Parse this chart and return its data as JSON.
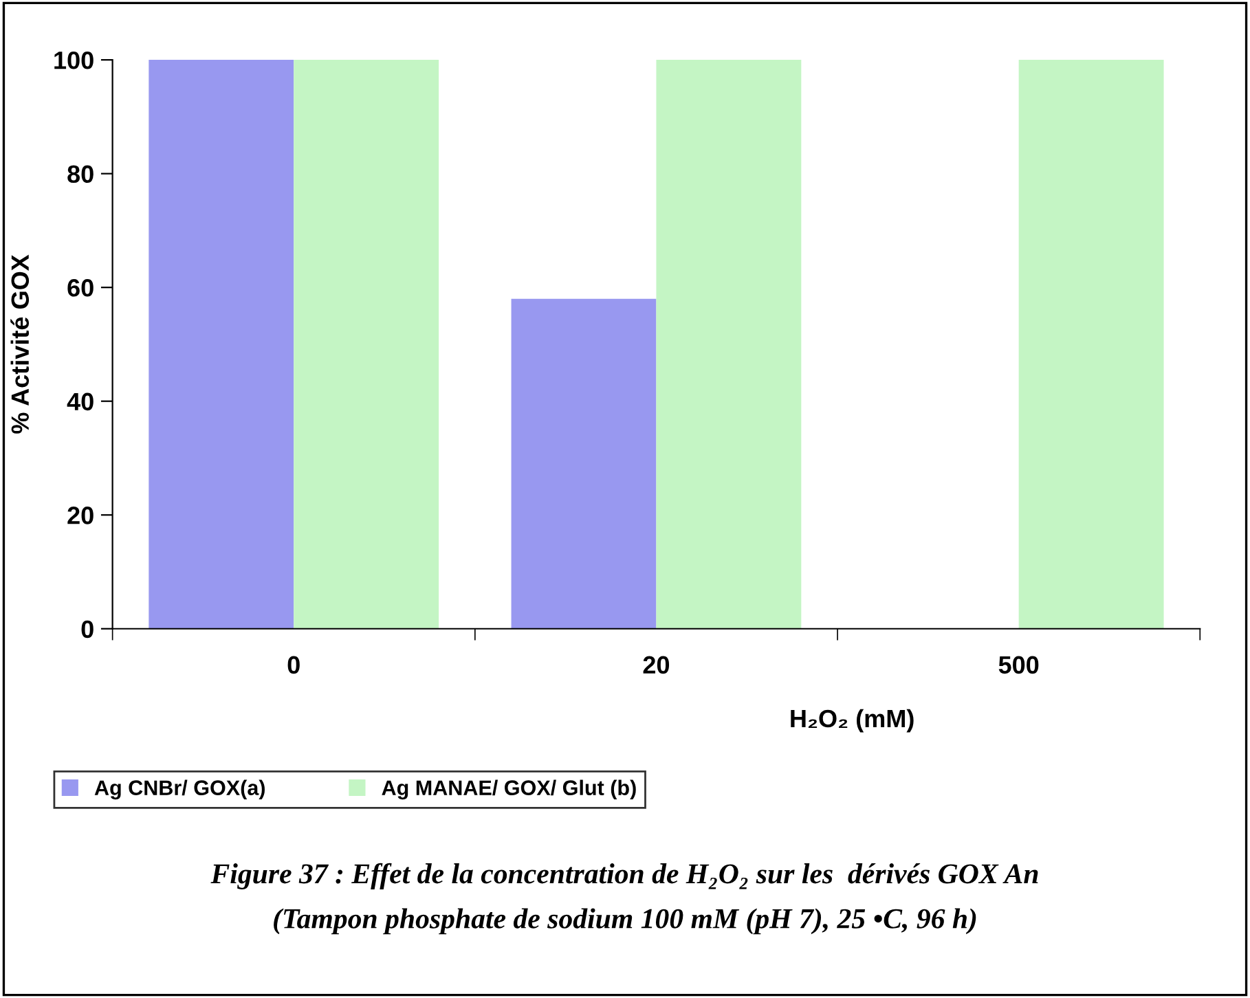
{
  "chart_data": {
    "type": "bar",
    "categories": [
      "0",
      "20",
      "500"
    ],
    "xlabel": "H₂O₂ (mM)",
    "ylabel": "% Activité GOX",
    "series": [
      {
        "name": "Ag CNBr/ GOX(a)",
        "color": "#9898f0",
        "values": [
          100,
          58,
          0
        ]
      },
      {
        "name": "Ag MANAE/ GOX/ Glut (b)",
        "color": "#c4f5c4",
        "values": [
          100,
          100,
          100
        ]
      }
    ],
    "ylim": [
      0,
      100
    ],
    "yticks": [
      0,
      20,
      40,
      60,
      80,
      100
    ],
    "grid": false,
    "legend": "bottom",
    "annotations": [
      "Figure 37 : Effet de la concentration de H₂O₂ sur les  dérivés GOX An",
      "(Tampon phosphate de sodium 100 mM (pH 7), 25 •C, 96 h)"
    ]
  }
}
